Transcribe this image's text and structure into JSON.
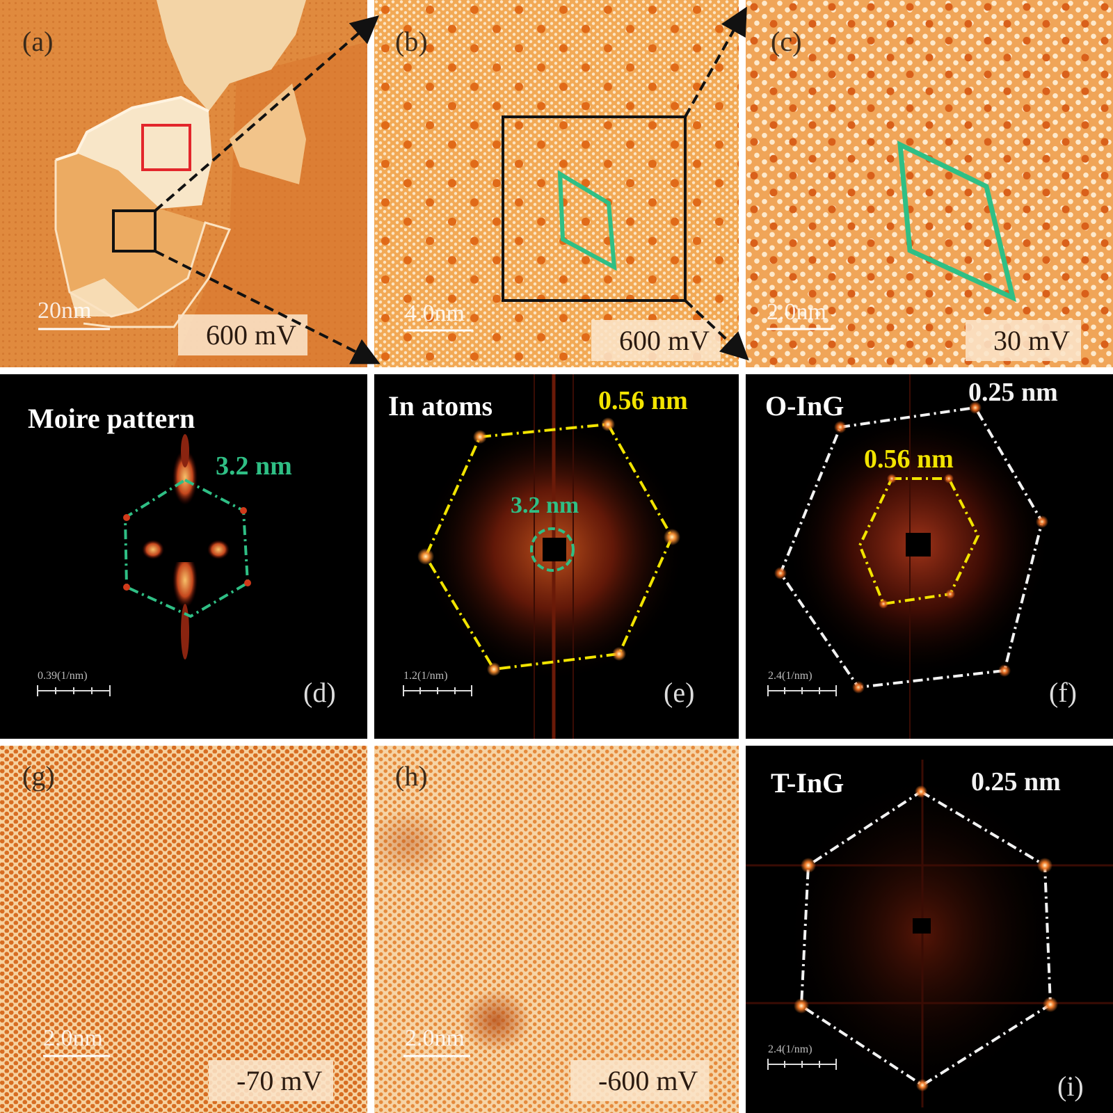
{
  "panels": {
    "a": {
      "label": "(a)",
      "scale": "20nm",
      "bias": "600 mV"
    },
    "b": {
      "label": "(b)",
      "scale": "4.0nm",
      "bias": "600 mV"
    },
    "c": {
      "label": "(c)",
      "scale": "2.0nm",
      "bias": "30 mV"
    },
    "d": {
      "label": "(d)",
      "title": "Moire pattern",
      "value": "3.2 nm",
      "scale": "0.39(1/nm)"
    },
    "e": {
      "label": "(e)",
      "title": "In atoms",
      "value_outer": "0.56 nm",
      "value_inner": "3.2 nm",
      "scale": "1.2(1/nm)"
    },
    "f": {
      "label": "(f)",
      "title": "O-InG",
      "value_outer": "0.25 nm",
      "value_inner": "0.56 nm",
      "scale": "2.4(1/nm)"
    },
    "g": {
      "label": "(g)",
      "scale": "2.0nm",
      "bias": "-70 mV"
    },
    "h": {
      "label": "(h)",
      "scale": "2.0nm",
      "bias": "-600 mV"
    },
    "i": {
      "label": "(i)",
      "title": "T-InG",
      "value": "0.25 nm",
      "scale": "2.4(1/nm)"
    }
  },
  "colors": {
    "stm_base": "#e8923c",
    "stm_light": "#f7d9a8",
    "moire_cell": "#2fbf85",
    "fft_hex_yellow": "#f2e400",
    "fft_hex_white": "#f2f2f2",
    "highlight_box_red": "#e3262b"
  }
}
